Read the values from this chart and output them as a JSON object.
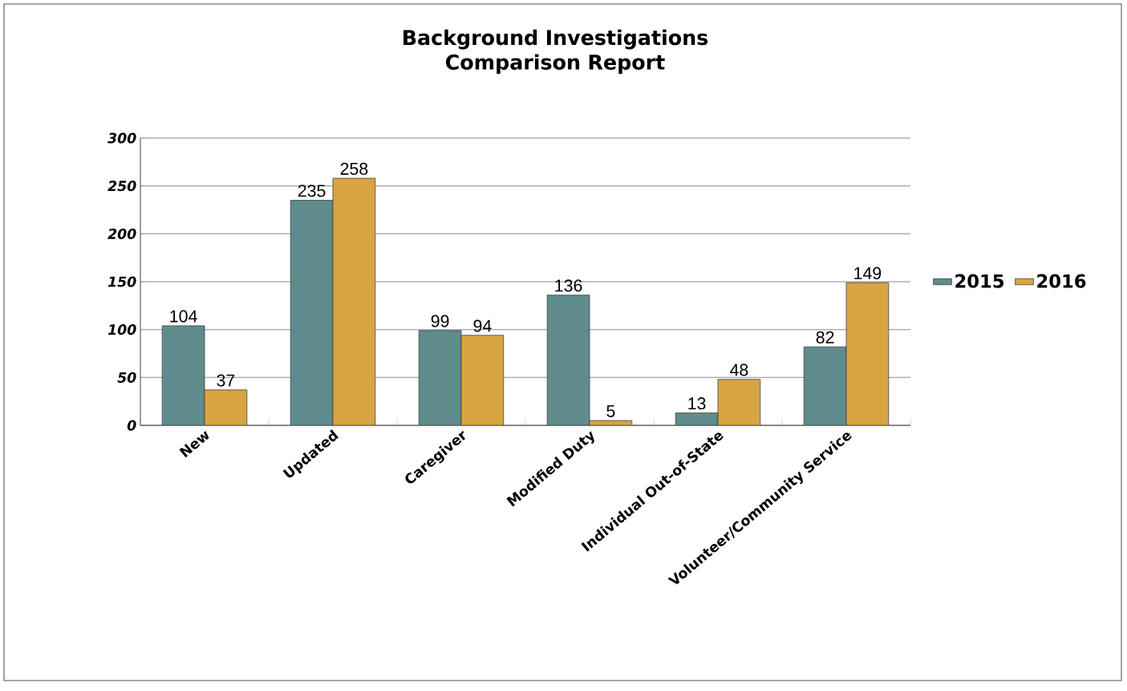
{
  "chart_data": {
    "type": "bar",
    "title": "Background Investigations Comparison Report",
    "categories": [
      "New",
      "Updated",
      "Caregiver",
      "Modified Duty",
      "Individual Out-of-State",
      "Volunteer/Community Service"
    ],
    "series": [
      {
        "name": "2015",
        "color": "#5e8c8c",
        "values": [
          104,
          235,
          99,
          136,
          13,
          82
        ]
      },
      {
        "name": "2016",
        "color": "#d9a441",
        "values": [
          37,
          258,
          94,
          5,
          48,
          149
        ]
      }
    ],
    "ylim": [
      0,
      300
    ],
    "yticks": [
      0,
      50,
      100,
      150,
      200,
      250,
      300
    ],
    "grid": "y",
    "data_labels": true,
    "legend": "right"
  }
}
